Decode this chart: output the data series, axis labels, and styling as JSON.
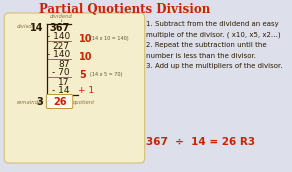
{
  "title": "Partial Quotients Division",
  "title_color": "#cc2200",
  "outer_bg": "#dde0ea",
  "box_color": "#f5eecc",
  "box_edge": "#d4c078",
  "divisor": "14",
  "dividend": "367",
  "dividend_label": "dividend",
  "divisor_label": "divisor",
  "remainder_label": "remainder",
  "quotient_label": "quotient",
  "remainder": "3",
  "quotient": "26",
  "instructions": [
    "1. Subtract from the dividend an easy",
    "multiple of the divisor. ( x10, x5, x2…)",
    "2. Repeat the subtraction until the",
    "number is less than the divisor.",
    "3. Add up the multipliers of the divisor."
  ],
  "answer_line": "367  ÷  14 = 26 R3",
  "red_color": "#cc2200",
  "dark_color": "#2a1a00",
  "label_color": "#8a7040",
  "purple_color": "#8844aa",
  "note_color": "#555533"
}
